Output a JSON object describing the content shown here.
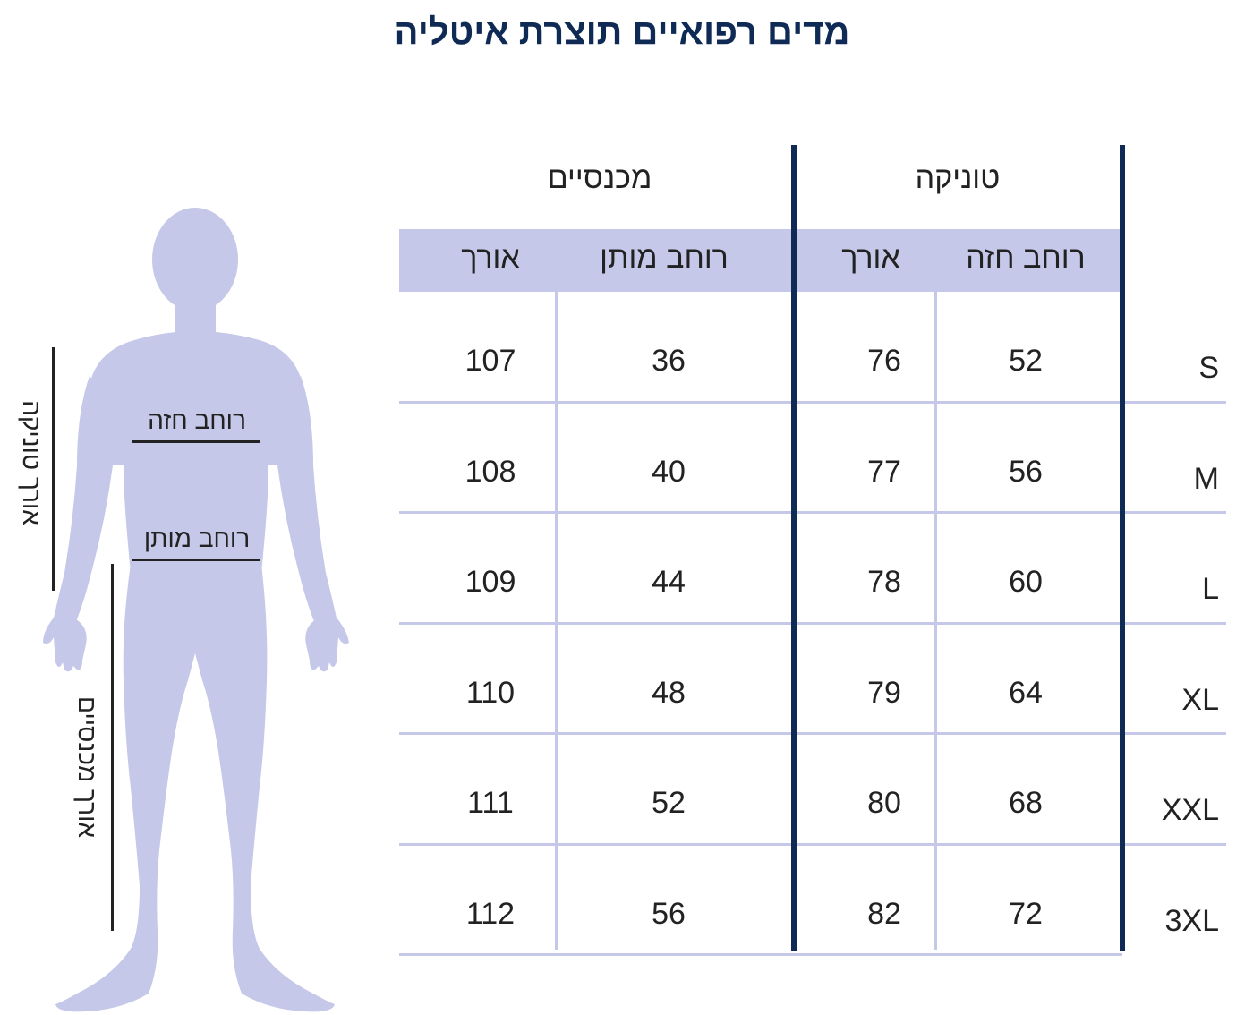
{
  "title": "מדים רפואיים תוצרת איטליה",
  "groups": {
    "tunic": "טוניקה",
    "pants": "מכנסיים"
  },
  "headers": {
    "tunic_chest": "רוחב חזה",
    "tunic_length": "אורך",
    "pants_waist": "רוחב מותן",
    "pants_length": "אורך"
  },
  "rows": [
    {
      "size": "S",
      "chest": "52",
      "tunic_length": "76",
      "waist": "36",
      "pants_length": "107"
    },
    {
      "size": "M",
      "chest": "56",
      "tunic_length": "77",
      "waist": "40",
      "pants_length": "108"
    },
    {
      "size": "L",
      "chest": "60",
      "tunic_length": "78",
      "waist": "44",
      "pants_length": "109"
    },
    {
      "size": "XL",
      "chest": "64",
      "tunic_length": "79",
      "waist": "48",
      "pants_length": "110"
    },
    {
      "size": "XXL",
      "chest": "68",
      "tunic_length": "80",
      "waist": "52",
      "pants_length": "111"
    },
    {
      "size": "3XL",
      "chest": "72",
      "tunic_length": "82",
      "waist": "56",
      "pants_length": "112"
    }
  ],
  "figure": {
    "chest_label": "רוחב חזה",
    "waist_label": "רוחב מותן",
    "tunic_length_label": "אורך טוניקה",
    "pants_length_label": "אורך מכנסיים"
  },
  "colors": {
    "accent": "#0f2a55",
    "band": "#c5c8e8",
    "figure": "#c5c8e8"
  }
}
